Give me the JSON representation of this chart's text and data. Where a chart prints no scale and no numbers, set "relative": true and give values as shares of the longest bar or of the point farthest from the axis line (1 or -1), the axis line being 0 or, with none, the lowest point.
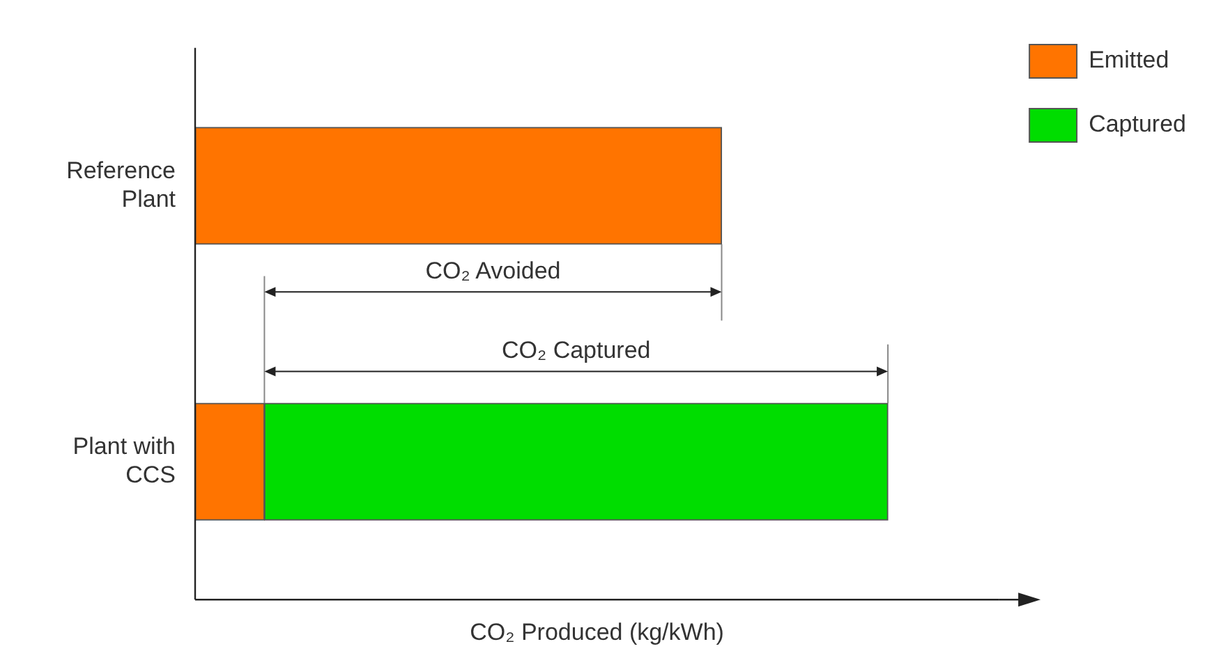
{
  "chart_data": {
    "type": "bar",
    "orientation": "horizontal",
    "stacked": true,
    "relative": true,
    "categories": [
      "Reference Plant",
      "Plant with CCS"
    ],
    "series": [
      {
        "name": "Emitted",
        "color": "#ff7400",
        "values": [
          0.76,
          0.1
        ]
      },
      {
        "name": "Captured",
        "color": "#00dd00",
        "values": [
          0,
          0.9
        ]
      }
    ],
    "xlabel": "CO₂ Produced (kg/kWh)",
    "annotations": [
      "CO₂ Avoided",
      "CO₂ Captured"
    ],
    "grid": false,
    "legend": "top right",
    "tick_labels": "y"
  }
}
